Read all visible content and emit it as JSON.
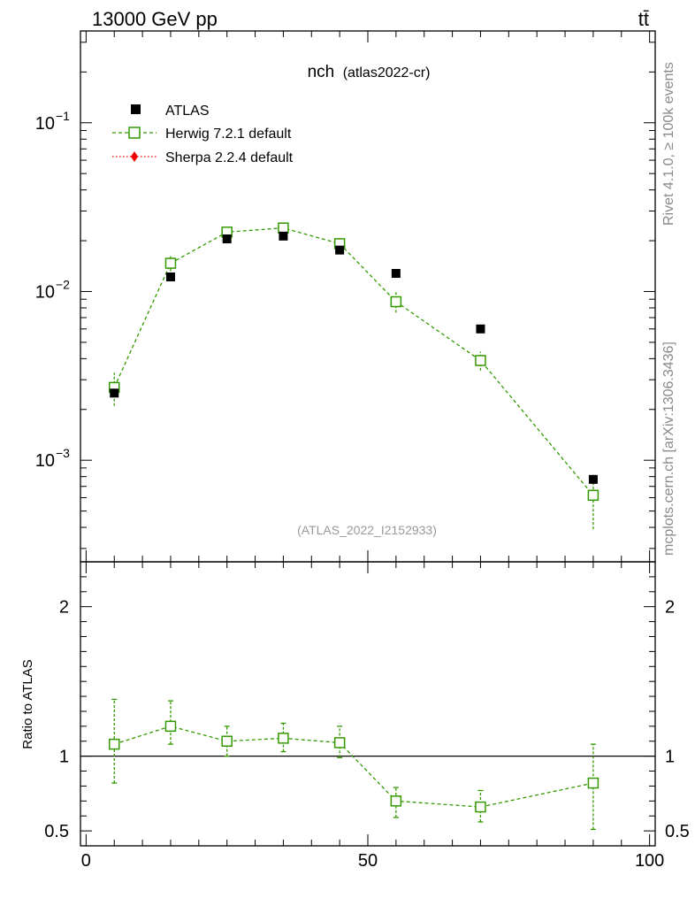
{
  "header": {
    "left_title": "13000 GeV pp",
    "right_title": "tt̄"
  },
  "side_text": {
    "rivet": "Rivet 4.1.0, ≥ 100k events",
    "mcplots": "mcplots.cern.ch [arXiv:1306.3436]"
  },
  "colors": {
    "data": "#000000",
    "herwig": "#339900",
    "sherpa": "#ee0000",
    "frame": "#000000",
    "watermark": "#999999"
  },
  "chart_data": {
    "type": "scatter",
    "title": "nch",
    "subtitle": "(atlas2022-cr)",
    "analysis_tag": "(ATLAS_2022_I2152933)",
    "xlim": [
      -1,
      101
    ],
    "x_ticks": [
      0,
      50,
      100
    ],
    "x_tick_labels": [
      "0",
      "50",
      "100"
    ],
    "main": {
      "yscale": "log",
      "ylim": [
        0.00025,
        0.35
      ],
      "y_ticks": [
        0.001,
        0.01,
        0.1
      ],
      "legend": [
        "ATLAS",
        "Herwig 7.2.1 default",
        "Sherpa 2.2.4 default"
      ]
    },
    "ratio": {
      "ylabel": "Ratio to ATLAS",
      "ylim": [
        0.4,
        2.3
      ],
      "y_ticks": [
        0.5,
        1,
        2
      ],
      "y_tick_labels": [
        "0.5",
        "1",
        "2"
      ]
    },
    "series": [
      {
        "name": "ATLAS",
        "style": "marker",
        "x": [
          5,
          15,
          25,
          35,
          45,
          55,
          70,
          90
        ],
        "y": [
          0.0025,
          0.0122,
          0.0205,
          0.0213,
          0.0176,
          0.0128,
          0.006,
          0.00077
        ]
      },
      {
        "name": "Herwig 7.2.1 default",
        "style": "dashed",
        "x": [
          5,
          15,
          25,
          35,
          45,
          55,
          70,
          90
        ],
        "y": [
          0.0027,
          0.0147,
          0.0225,
          0.0238,
          0.0192,
          0.0087,
          0.0039,
          0.00062
        ],
        "y_low": [
          0.0021,
          0.0132,
          0.0205,
          0.0222,
          0.0177,
          0.0075,
          0.0034,
          0.00039
        ],
        "y_high": [
          0.0033,
          0.0162,
          0.0245,
          0.0254,
          0.0207,
          0.0099,
          0.0044,
          0.00082
        ]
      },
      {
        "name": "Sherpa 2.2.4 default",
        "style": "dotted",
        "x": [],
        "y": []
      }
    ],
    "ratio_series": [
      {
        "name": "Herwig 7.2.1 default",
        "x": [
          5,
          15,
          25,
          35,
          45,
          55,
          70,
          90
        ],
        "y": [
          1.08,
          1.2,
          1.1,
          1.12,
          1.09,
          0.7,
          0.66,
          0.82
        ],
        "y_low": [
          0.82,
          1.08,
          1.0,
          1.03,
          0.99,
          0.59,
          0.56,
          0.51
        ],
        "y_high": [
          1.38,
          1.37,
          1.2,
          1.22,
          1.2,
          0.79,
          0.77,
          1.08
        ]
      }
    ]
  }
}
